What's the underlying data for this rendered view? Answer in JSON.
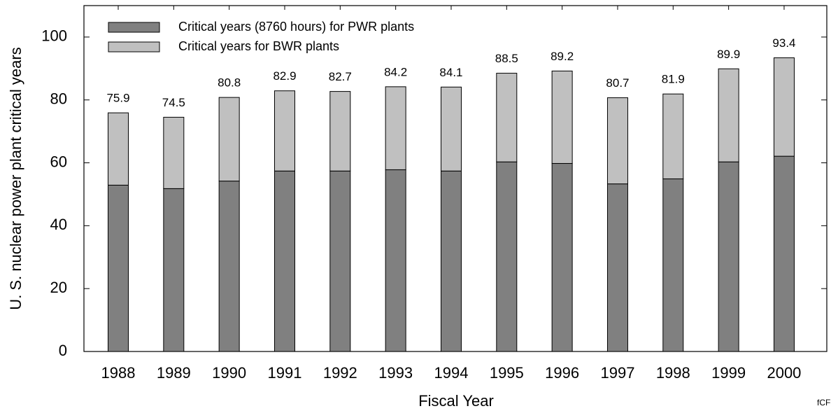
{
  "chart_data": {
    "type": "stacked_bar",
    "y_label": "U. S. nuclear power plant critical years",
    "x_label": "Fiscal Year",
    "annotation": "fCF",
    "categories": [
      "1988",
      "1989",
      "1990",
      "1991",
      "1992",
      "1993",
      "1994",
      "1995",
      "1996",
      "1997",
      "1998",
      "1999",
      "2000"
    ],
    "series": [
      {
        "name": "Critical years (8760 hours) for PWR plants",
        "color": "#808080",
        "values": [
          52.9,
          51.8,
          54.2,
          57.4,
          57.4,
          57.8,
          57.4,
          60.3,
          59.8,
          53.3,
          54.9,
          60.3,
          62.1
        ]
      },
      {
        "name": "Critical years for BWR plants",
        "color": "#c0c0c0",
        "values": [
          23.0,
          22.7,
          26.6,
          25.5,
          25.3,
          26.4,
          26.7,
          28.2,
          29.4,
          27.4,
          27.0,
          29.6,
          31.3
        ]
      }
    ],
    "totals": [
      75.9,
      74.5,
      80.8,
      82.9,
      82.7,
      84.2,
      84.1,
      88.5,
      89.2,
      80.7,
      81.9,
      89.9,
      93.4
    ],
    "ylim": [
      0,
      110
    ],
    "yticks": [
      0,
      20,
      40,
      60,
      80,
      100
    ]
  }
}
